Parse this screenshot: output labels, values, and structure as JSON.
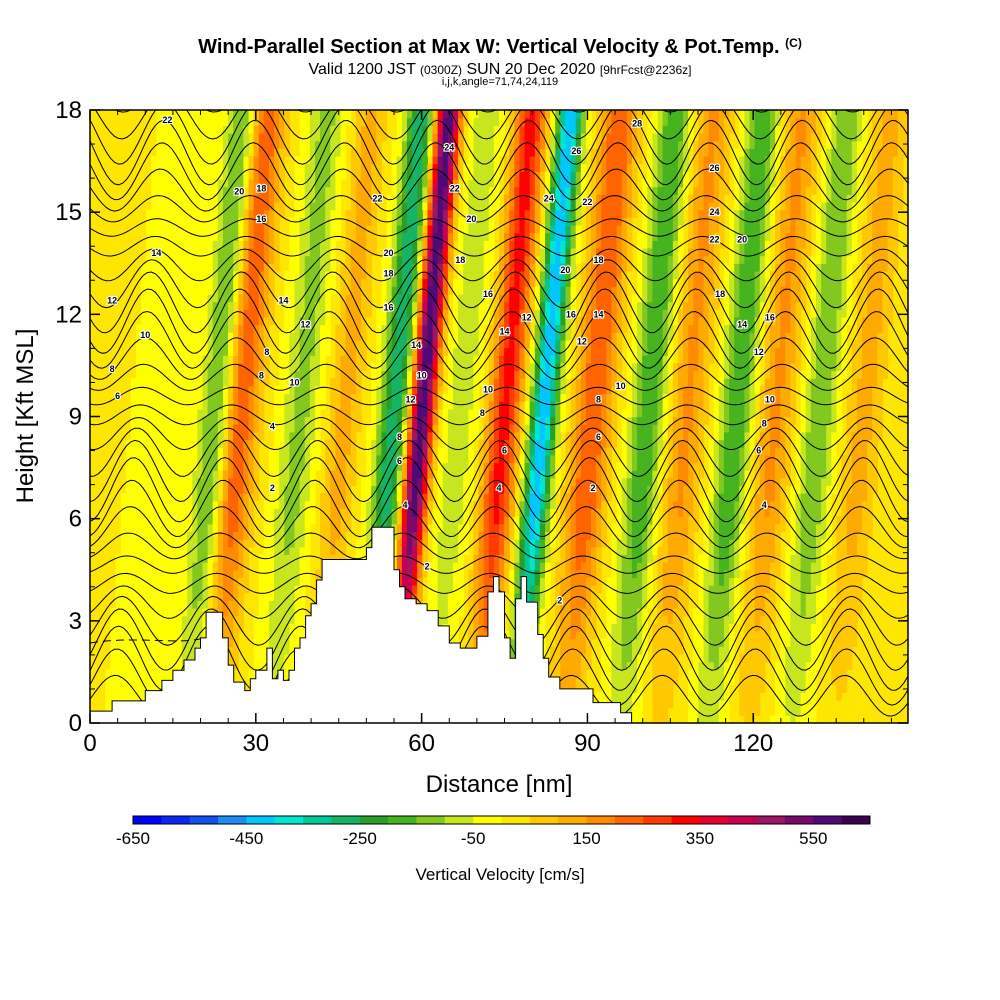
{
  "header": {
    "title": "Wind-Parallel Section at Max W: Vertical Velocity & Pot.Temp.",
    "title_mark": "(C)",
    "valid_prefix": "Valid 1200 JST",
    "valid_utc": "(0300Z)",
    "valid_date": "SUN 20 Dec 2020",
    "forecast": "[9hrFcst@2236z]",
    "indices": "i,j,k,angle=71,74,24,119"
  },
  "chart_data": {
    "type": "heatmap",
    "xlabel": "Distance [nm]",
    "ylabel": "Height [Kft MSL]",
    "xlim": [
      0,
      148
    ],
    "ylim": [
      0,
      18
    ],
    "x_ticks": [
      0,
      30,
      60,
      90,
      120
    ],
    "y_ticks": [
      0,
      3,
      6,
      9,
      12,
      15,
      18
    ],
    "grid": false,
    "colorbar": {
      "label": "Vertical Velocity [cm/s]",
      "min": -650,
      "max": 650,
      "step": 50,
      "tick_values": [
        -650,
        -450,
        -250,
        -50,
        150,
        350,
        550
      ],
      "colors": [
        "#0000ff",
        "#0a28f0",
        "#1450f0",
        "#1e8cf0",
        "#00c8ff",
        "#00e6d2",
        "#00c896",
        "#14b464",
        "#28a028",
        "#46b41e",
        "#82c81e",
        "#c8e61e",
        "#ffff00",
        "#ffe600",
        "#ffc800",
        "#ffaa00",
        "#ff8c00",
        "#ff6400",
        "#ff3c00",
        "#ff0000",
        "#e6002d",
        "#c80050",
        "#a01464",
        "#780a6e",
        "#500a78",
        "#3c0050"
      ]
    },
    "updraft_bands": [
      {
        "x": 27,
        "peak": 250,
        "width": 3.5
      },
      {
        "x": 46,
        "peak": 120,
        "width": 3.0
      },
      {
        "x": 60,
        "peak": 600,
        "width": 2.2
      },
      {
        "x": 75,
        "peak": 320,
        "width": 3.0
      },
      {
        "x": 91,
        "peak": 250,
        "width": 3.5
      },
      {
        "x": 108,
        "peak": 160,
        "width": 3.5
      },
      {
        "x": 124,
        "peak": 160,
        "width": 3.5
      },
      {
        "x": 140,
        "peak": 120,
        "width": 3.5
      }
    ],
    "downdraft_bands": [
      {
        "x": 23,
        "peak": -200,
        "width": 2.8
      },
      {
        "x": 38,
        "peak": -120,
        "width": 3.0
      },
      {
        "x": 55,
        "peak": -300,
        "width": 2.5
      },
      {
        "x": 67,
        "peak": -80,
        "width": 3.0
      },
      {
        "x": 82,
        "peak": -450,
        "width": 2.3
      },
      {
        "x": 101,
        "peak": -200,
        "width": 3.0
      },
      {
        "x": 117,
        "peak": -200,
        "width": 3.0
      },
      {
        "x": 132,
        "peak": -150,
        "width": 3.0
      }
    ],
    "terrain": [
      [
        0,
        0.35
      ],
      [
        4,
        0.35
      ],
      [
        4,
        0.65
      ],
      [
        10,
        0.65
      ],
      [
        10,
        0.95
      ],
      [
        13,
        0.95
      ],
      [
        13,
        1.25
      ],
      [
        15,
        1.25
      ],
      [
        15,
        1.55
      ],
      [
        17,
        1.55
      ],
      [
        17,
        1.85
      ],
      [
        19,
        1.85
      ],
      [
        19,
        2.2
      ],
      [
        20,
        2.2
      ],
      [
        20,
        2.5
      ],
      [
        21,
        2.5
      ],
      [
        21,
        3.25
      ],
      [
        24,
        3.25
      ],
      [
        24,
        2.5
      ],
      [
        25,
        2.5
      ],
      [
        25,
        1.7
      ],
      [
        26,
        1.7
      ],
      [
        26,
        1.2
      ],
      [
        28,
        1.2
      ],
      [
        28,
        0.95
      ],
      [
        29,
        0.95
      ],
      [
        29,
        1.3
      ],
      [
        30,
        1.3
      ],
      [
        30,
        1.55
      ],
      [
        32,
        1.55
      ],
      [
        32,
        2.2
      ],
      [
        33,
        2.2
      ],
      [
        33,
        1.3
      ],
      [
        34,
        1.3
      ],
      [
        34,
        1.55
      ],
      [
        35,
        1.55
      ],
      [
        35,
        1.25
      ],
      [
        36,
        1.25
      ],
      [
        36,
        1.55
      ],
      [
        37,
        1.55
      ],
      [
        37,
        2.2
      ],
      [
        38,
        2.2
      ],
      [
        38,
        2.5
      ],
      [
        39,
        2.5
      ],
      [
        39,
        3.15
      ],
      [
        40,
        3.15
      ],
      [
        40,
        3.5
      ],
      [
        41,
        3.5
      ],
      [
        41,
        4.2
      ],
      [
        42,
        4.2
      ],
      [
        42,
        4.8
      ],
      [
        50,
        4.8
      ],
      [
        50,
        5.15
      ],
      [
        51,
        5.15
      ],
      [
        51,
        5.75
      ],
      [
        55,
        5.75
      ],
      [
        55,
        4.5
      ],
      [
        56,
        4.5
      ],
      [
        56,
        4.0
      ],
      [
        57,
        4.0
      ],
      [
        57,
        3.65
      ],
      [
        59,
        3.65
      ],
      [
        59,
        3.5
      ],
      [
        61,
        3.5
      ],
      [
        61,
        3.3
      ],
      [
        63,
        3.3
      ],
      [
        63,
        2.85
      ],
      [
        65,
        2.85
      ],
      [
        65,
        2.35
      ],
      [
        67,
        2.35
      ],
      [
        67,
        2.2
      ],
      [
        70,
        2.2
      ],
      [
        70,
        2.55
      ],
      [
        72,
        2.55
      ],
      [
        72,
        3.85
      ],
      [
        73,
        3.85
      ],
      [
        73,
        4.3
      ],
      [
        74,
        4.3
      ],
      [
        74,
        3.85
      ],
      [
        75,
        3.85
      ],
      [
        75,
        2.5
      ],
      [
        76,
        2.5
      ],
      [
        76,
        1.9
      ],
      [
        77,
        1.9
      ],
      [
        77,
        3.65
      ],
      [
        78,
        3.65
      ],
      [
        78,
        4.3
      ],
      [
        79,
        4.3
      ],
      [
        79,
        3.55
      ],
      [
        81,
        3.55
      ],
      [
        81,
        2.6
      ],
      [
        82,
        2.6
      ],
      [
        82,
        1.9
      ],
      [
        83,
        1.9
      ],
      [
        83,
        1.35
      ],
      [
        85,
        1.35
      ],
      [
        85,
        1.0
      ],
      [
        91,
        1.0
      ],
      [
        91,
        0.6
      ],
      [
        96,
        0.6
      ],
      [
        96,
        0.3
      ],
      [
        98,
        0.3
      ],
      [
        98,
        0.0
      ]
    ],
    "isentrope_labels": [
      {
        "text": "22",
        "x": 14,
        "y": 17.7
      },
      {
        "text": "20",
        "x": 27,
        "y": 15.6
      },
      {
        "text": "18",
        "x": 31,
        "y": 15.7
      },
      {
        "text": "16",
        "x": 31,
        "y": 14.8
      },
      {
        "text": "14",
        "x": 12,
        "y": 13.8
      },
      {
        "text": "12",
        "x": 4,
        "y": 12.4
      },
      {
        "text": "10",
        "x": 10,
        "y": 11.4
      },
      {
        "text": "8",
        "x": 4,
        "y": 10.4
      },
      {
        "text": "6",
        "x": 5,
        "y": 9.6
      },
      {
        "text": "14",
        "x": 35,
        "y": 12.4
      },
      {
        "text": "12",
        "x": 39,
        "y": 11.7
      },
      {
        "text": "8",
        "x": 32,
        "y": 10.9
      },
      {
        "text": "8",
        "x": 31,
        "y": 10.2
      },
      {
        "text": "10",
        "x": 37,
        "y": 10.0
      },
      {
        "text": "4",
        "x": 33,
        "y": 8.7
      },
      {
        "text": "2",
        "x": 33,
        "y": 6.9
      },
      {
        "text": "22",
        "x": 52,
        "y": 15.4
      },
      {
        "text": "20",
        "x": 54,
        "y": 13.8
      },
      {
        "text": "18",
        "x": 54,
        "y": 13.2
      },
      {
        "text": "16",
        "x": 54,
        "y": 12.2
      },
      {
        "text": "14",
        "x": 59,
        "y": 11.1
      },
      {
        "text": "10",
        "x": 60,
        "y": 10.2
      },
      {
        "text": "12",
        "x": 58,
        "y": 9.5
      },
      {
        "text": "8",
        "x": 56,
        "y": 8.4
      },
      {
        "text": "6",
        "x": 56,
        "y": 7.7
      },
      {
        "text": "4",
        "x": 57,
        "y": 6.4
      },
      {
        "text": "2",
        "x": 61,
        "y": 4.6
      },
      {
        "text": "24",
        "x": 65,
        "y": 16.9
      },
      {
        "text": "22",
        "x": 66,
        "y": 15.7
      },
      {
        "text": "20",
        "x": 69,
        "y": 14.8
      },
      {
        "text": "18",
        "x": 67,
        "y": 13.6
      },
      {
        "text": "16",
        "x": 72,
        "y": 12.6
      },
      {
        "text": "14",
        "x": 75,
        "y": 11.5
      },
      {
        "text": "12",
        "x": 79,
        "y": 11.9
      },
      {
        "text": "10",
        "x": 72,
        "y": 9.8
      },
      {
        "text": "8",
        "x": 71,
        "y": 9.1
      },
      {
        "text": "6",
        "x": 75,
        "y": 8.0
      },
      {
        "text": "4",
        "x": 74,
        "y": 6.9
      },
      {
        "text": "24",
        "x": 83,
        "y": 15.4
      },
      {
        "text": "26",
        "x": 88,
        "y": 16.8
      },
      {
        "text": "28",
        "x": 99,
        "y": 17.6
      },
      {
        "text": "22",
        "x": 90,
        "y": 15.3
      },
      {
        "text": "20",
        "x": 86,
        "y": 13.3
      },
      {
        "text": "18",
        "x": 92,
        "y": 13.6
      },
      {
        "text": "16",
        "x": 87,
        "y": 12.0
      },
      {
        "text": "14",
        "x": 92,
        "y": 12.0
      },
      {
        "text": "12",
        "x": 89,
        "y": 11.2
      },
      {
        "text": "10",
        "x": 96,
        "y": 9.9
      },
      {
        "text": "8",
        "x": 92,
        "y": 9.5
      },
      {
        "text": "6",
        "x": 92,
        "y": 8.4
      },
      {
        "text": "2",
        "x": 91,
        "y": 6.9
      },
      {
        "text": "2",
        "x": 85,
        "y": 3.6
      },
      {
        "text": "26",
        "x": 113,
        "y": 16.3
      },
      {
        "text": "24",
        "x": 113,
        "y": 15.0
      },
      {
        "text": "22",
        "x": 113,
        "y": 14.2
      },
      {
        "text": "20",
        "x": 118,
        "y": 14.2
      },
      {
        "text": "18",
        "x": 114,
        "y": 12.6
      },
      {
        "text": "16",
        "x": 123,
        "y": 11.9
      },
      {
        "text": "14",
        "x": 118,
        "y": 11.7
      },
      {
        "text": "12",
        "x": 121,
        "y": 10.9
      },
      {
        "text": "10",
        "x": 123,
        "y": 9.5
      },
      {
        "text": "8",
        "x": 122,
        "y": 8.8
      },
      {
        "text": "6",
        "x": 121,
        "y": 8.0
      },
      {
        "text": "4",
        "x": 122,
        "y": 6.4
      }
    ]
  }
}
